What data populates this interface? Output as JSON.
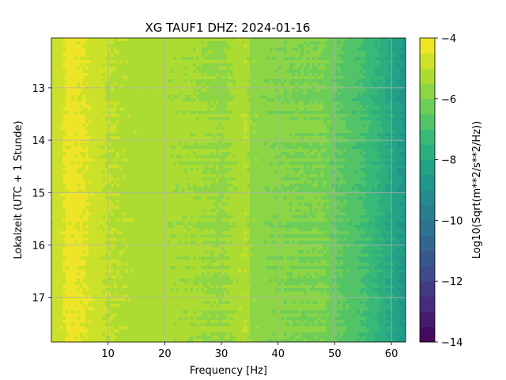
{
  "chart_data": {
    "type": "heatmap",
    "title": "XG TAUF1  DHZ: 2024-01-16",
    "xlabel": "Frequency [Hz]",
    "ylabel": "Lokalzeit (UTC + 1 Stunde)",
    "colorbar_label": "Log10(Sqrt(m**2/s**2/Hz))",
    "xlim": [
      0,
      62.5
    ],
    "ylim": [
      17.85,
      12.05
    ],
    "y_inverted": true,
    "xticks": [
      10,
      20,
      30,
      40,
      50,
      60
    ],
    "yticks": [
      13,
      14,
      15,
      16,
      17
    ],
    "color_range": [
      -14,
      -4
    ],
    "colorbar_ticks": [
      -4,
      -6,
      -8,
      -10,
      -12,
      -14
    ],
    "colorbar_tick_labels": [
      "−4",
      "−6",
      "−8",
      "−10",
      "−12",
      "−14"
    ],
    "colormap": "viridis",
    "color_levels": 20,
    "grid": true,
    "frequency_profile": [
      [
        0.5,
        -4.8
      ],
      [
        1.5,
        -4.7
      ],
      [
        3,
        -4.3
      ],
      [
        6,
        -4.5
      ],
      [
        10,
        -5.0
      ],
      [
        15,
        -5.2
      ],
      [
        20,
        -5.3
      ],
      [
        25,
        -5.4
      ],
      [
        30,
        -5.6
      ],
      [
        34.5,
        -5.1
      ],
      [
        35,
        -5.7
      ],
      [
        40,
        -5.9
      ],
      [
        45,
        -6.0
      ],
      [
        48,
        -6.0
      ],
      [
        50,
        -6.4
      ],
      [
        55,
        -7.0
      ],
      [
        58,
        -7.6
      ],
      [
        60,
        -8.1
      ],
      [
        62.5,
        -8.7
      ]
    ]
  }
}
